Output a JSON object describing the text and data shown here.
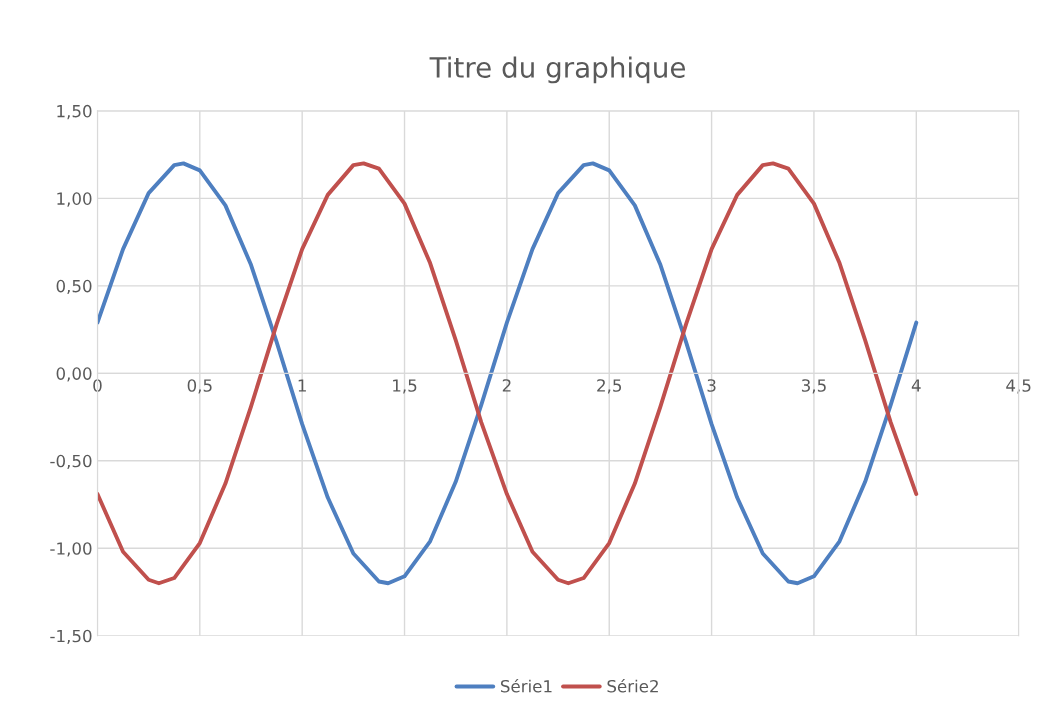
{
  "chart_data": {
    "type": "line",
    "title": "Titre du graphique",
    "series": [
      {
        "name": "Série1",
        "color": "#4e7fc0",
        "x": [
          0,
          0.125,
          0.25,
          0.375,
          0.42,
          0.5,
          0.625,
          0.75,
          0.875,
          1,
          1.125,
          1.25,
          1.375,
          1.42,
          1.5,
          1.625,
          1.75,
          1.875,
          2,
          2.125,
          2.25,
          2.375,
          2.42,
          2.5,
          2.625,
          2.75,
          2.875,
          3,
          3.125,
          3.25,
          3.375,
          3.42,
          3.5,
          3.625,
          3.75,
          3.875,
          4
        ],
        "values": [
          0.29,
          0.71,
          1.03,
          1.19,
          1.2,
          1.16,
          0.96,
          0.62,
          0.18,
          -0.29,
          -0.71,
          -1.03,
          -1.19,
          -1.2,
          -1.16,
          -0.96,
          -0.62,
          -0.18,
          0.29,
          0.71,
          1.03,
          1.19,
          1.2,
          1.16,
          0.96,
          0.62,
          0.18,
          -0.29,
          -0.71,
          -1.03,
          -1.19,
          -1.2,
          -1.16,
          -0.96,
          -0.62,
          -0.18,
          0.29
        ]
      },
      {
        "name": "Série2",
        "color": "#c0504d",
        "x": [
          0,
          0.125,
          0.25,
          0.3,
          0.375,
          0.5,
          0.625,
          0.75,
          0.875,
          1,
          1.125,
          1.25,
          1.3,
          1.375,
          1.5,
          1.625,
          1.75,
          1.875,
          2,
          2.125,
          2.25,
          2.3,
          2.375,
          2.5,
          2.625,
          2.75,
          2.875,
          3,
          3.125,
          3.25,
          3.3,
          3.375,
          3.5,
          3.625,
          3.75,
          3.875,
          4
        ],
        "values": [
          -0.69,
          -1.02,
          -1.18,
          -1.2,
          -1.17,
          -0.97,
          -0.63,
          -0.19,
          0.28,
          0.71,
          1.02,
          1.19,
          1.2,
          1.17,
          0.97,
          0.63,
          0.19,
          -0.28,
          -0.69,
          -1.02,
          -1.18,
          -1.2,
          -1.17,
          -0.97,
          -0.63,
          -0.19,
          0.28,
          0.71,
          1.02,
          1.19,
          1.2,
          1.17,
          0.97,
          0.63,
          0.19,
          -0.28,
          -0.69
        ]
      }
    ],
    "xlim": [
      0,
      4.5
    ],
    "xticks": [
      0,
      {
        "value": 0.5,
        "label": "0,5"
      },
      1,
      {
        "value": 1.5,
        "label": "1,5"
      },
      2,
      {
        "value": 2.5,
        "label": "2,5"
      },
      3,
      {
        "value": 3.5,
        "label": "3,5"
      },
      4,
      {
        "value": 4.5,
        "label": "4,5"
      }
    ],
    "ylim": [
      -1.5,
      1.5
    ],
    "yticks": [
      {
        "value": -1.5,
        "label": "-1,50"
      },
      {
        "value": -1,
        "label": "-1,00"
      },
      {
        "value": -0.5,
        "label": "-0,50"
      },
      {
        "value": 0,
        "label": "0,00"
      },
      {
        "value": 0.5,
        "label": "0,50"
      },
      {
        "value": 1,
        "label": "1,00"
      },
      {
        "value": 1.5,
        "label": "1,50"
      }
    ],
    "grid": true,
    "legend": "bottom",
    "marker": "none",
    "line_style": "solid"
  }
}
